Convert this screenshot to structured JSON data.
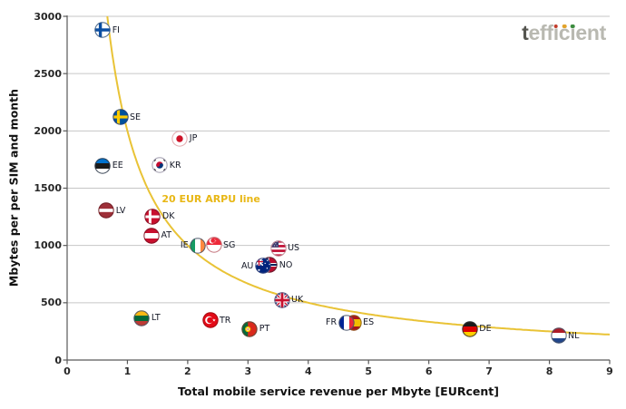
{
  "brand": {
    "logo_first_letter": "t",
    "logo_rest": "efficient",
    "dot_over_chars": [
      3,
      4,
      5
    ],
    "dot_colors": [
      "#C23B2A",
      "#E2A32B",
      "#3C8C3F"
    ],
    "first_letter_color": "#55554F",
    "rest_color": "#B9B9B1"
  },
  "chart_data": {
    "type": "scatter",
    "title": "",
    "xlabel": "Total mobile service revenue per Mbyte [EURcent]",
    "ylabel": "Mbytes per per SIM and month",
    "xlim": [
      0,
      9
    ],
    "ylim": [
      0,
      3000
    ],
    "x_ticks": [
      0,
      1,
      2,
      3,
      4,
      5,
      6,
      7,
      8,
      9
    ],
    "y_ticks": [
      0,
      500,
      1000,
      1500,
      2000,
      2500,
      3000
    ],
    "grid": "horizontal-only",
    "grid_color": "#C6C6C6",
    "axis_color": "#595959",
    "tick_label_color": "#262626",
    "reference_curve": {
      "label": "20 EUR ARPU line",
      "formula": "y = 2000 / x",
      "arpu_eur": 20,
      "color": "#E9C336",
      "label_color": "#E8B715",
      "label_at": {
        "x": 1.57,
        "y": 1405
      }
    },
    "points": [
      {
        "code": "FI",
        "country": "Finland",
        "x": 0.59,
        "y": 2880,
        "label_side": "right"
      },
      {
        "code": "SE",
        "country": "Sweden",
        "x": 0.88,
        "y": 2120,
        "label_side": "right"
      },
      {
        "code": "JP",
        "country": "Japan",
        "x": 1.87,
        "y": 1935,
        "label_side": "right"
      },
      {
        "code": "EE",
        "country": "Estonia",
        "x": 0.59,
        "y": 1695,
        "label_side": "right"
      },
      {
        "code": "KR",
        "country": "South Korea",
        "x": 1.54,
        "y": 1700,
        "label_side": "right"
      },
      {
        "code": "LV",
        "country": "Latvia",
        "x": 0.65,
        "y": 1305,
        "label_side": "right"
      },
      {
        "code": "DK",
        "country": "Denmark",
        "x": 1.42,
        "y": 1255,
        "label_side": "right"
      },
      {
        "code": "AT",
        "country": "Austria",
        "x": 1.4,
        "y": 1085,
        "label_side": "right"
      },
      {
        "code": "IE",
        "country": "Ireland",
        "x": 2.17,
        "y": 1000,
        "label_side": "left"
      },
      {
        "code": "SG",
        "country": "Singapore",
        "x": 2.43,
        "y": 1005,
        "label_side": "right"
      },
      {
        "code": "US",
        "country": "United States",
        "x": 3.5,
        "y": 975,
        "label_side": "right"
      },
      {
        "code": "NO",
        "country": "Norway",
        "x": 3.36,
        "y": 830,
        "label_side": "right"
      },
      {
        "code": "AU",
        "country": "Australia",
        "x": 3.25,
        "y": 820,
        "label_side": "left"
      },
      {
        "code": "UK",
        "country": "United Kingdom",
        "x": 3.56,
        "y": 525,
        "label_side": "right"
      },
      {
        "code": "LT",
        "country": "Lithuania",
        "x": 1.24,
        "y": 365,
        "label_side": "right"
      },
      {
        "code": "TR",
        "country": "Turkey",
        "x": 2.37,
        "y": 345,
        "label_side": "right"
      },
      {
        "code": "PT",
        "country": "Portugal",
        "x": 3.03,
        "y": 272,
        "label_side": "right"
      },
      {
        "code": "ES",
        "country": "Spain",
        "x": 4.75,
        "y": 327,
        "label_side": "right"
      },
      {
        "code": "FR",
        "country": "France",
        "x": 4.63,
        "y": 327,
        "label_side": "left"
      },
      {
        "code": "DE",
        "country": "Germany",
        "x": 6.68,
        "y": 270,
        "label_side": "right"
      },
      {
        "code": "NL",
        "country": "Netherlands",
        "x": 8.15,
        "y": 212,
        "label_side": "right"
      }
    ]
  }
}
